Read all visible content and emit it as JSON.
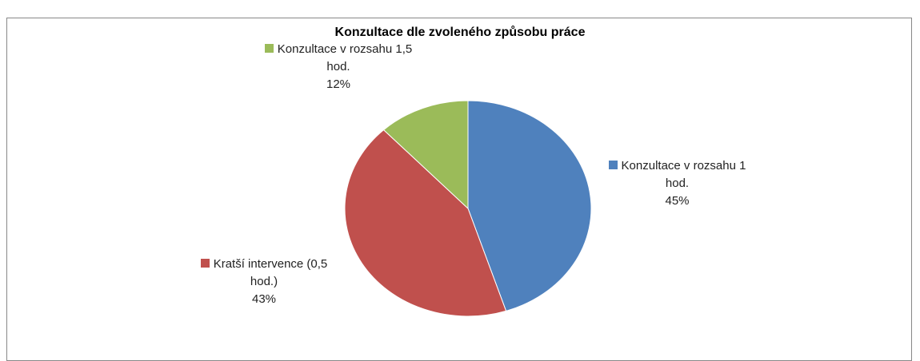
{
  "chart_data": {
    "type": "pie",
    "title": "Konzultace dle zvoleného způsobu práce",
    "categories": [
      "Konzultace v rozsahu 1 hod.",
      "Kratší intervence (0,5 hod.)",
      "Konzultace v rozsahu 1,5 hod."
    ],
    "values": [
      45,
      43,
      12
    ],
    "value_labels": [
      "45%",
      "43%",
      "12%"
    ],
    "colors": [
      "#4f81bd",
      "#c0504d",
      "#9bbb59"
    ]
  }
}
